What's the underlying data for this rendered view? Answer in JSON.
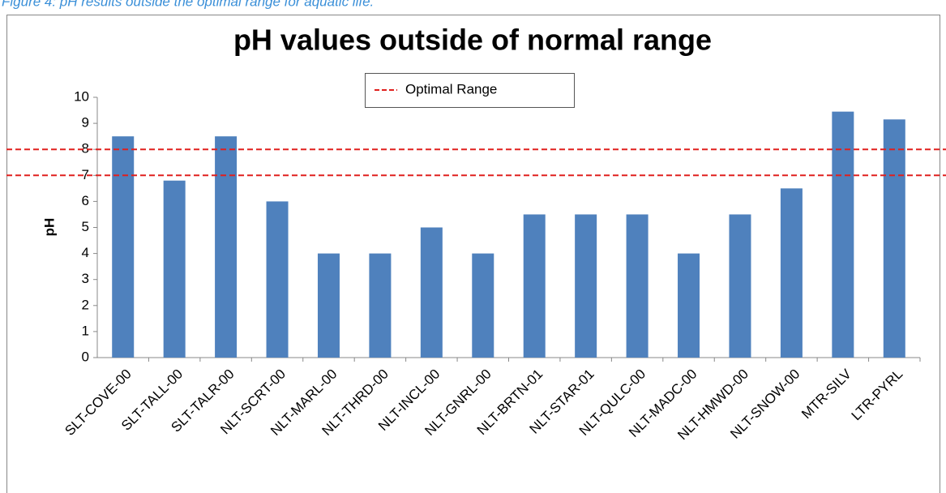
{
  "caption": "Figure 4: pH results outside the optimal range for aquatic life.",
  "chart_data": {
    "type": "bar",
    "title": "pH values outside of normal range",
    "y_label": "pH",
    "categories": [
      "SLT-COVE-00",
      "SLT-TALL-00",
      "SLT-TALR-00",
      "NLT-SCRT-00",
      "NLT-MARL-00",
      "NLT-THRD-00",
      "NLT-INCL-00",
      "NLT-GNRL-00",
      "NLT-BRTN-01",
      "NLT-STAR-01",
      "NLT-QULC-00",
      "NLT-MADC-00",
      "NLT-HMWD-00",
      "NLT-SNOW-00",
      "MTR-SILV",
      "LTR-PYRL"
    ],
    "values": [
      8.5,
      6.8,
      8.5,
      6,
      4,
      4,
      5,
      4,
      5.5,
      5.5,
      5.5,
      4,
      5.5,
      6.5,
      9.45,
      9.15
    ],
    "color": "#4f81bd",
    "reference_lines": {
      "name": "Optimal Range",
      "color": "#e0201e",
      "values": [
        8,
        7
      ]
    },
    "ylim": [
      0,
      10
    ],
    "yticks": [
      0,
      1,
      2,
      3,
      4,
      5,
      6,
      7,
      8,
      9,
      10
    ],
    "grid": false
  }
}
